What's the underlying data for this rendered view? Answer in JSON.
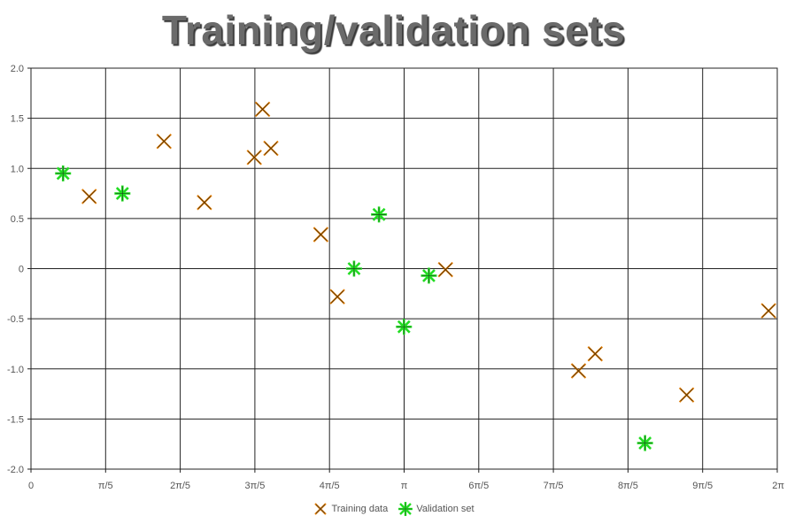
{
  "chart_data": {
    "type": "scatter",
    "title": "Training/validation sets",
    "xlabel": "",
    "ylabel": "",
    "xlim": [
      0,
      6.2832
    ],
    "ylim": [
      -2.0,
      2.0
    ],
    "grid": true,
    "legend_position": "bottom",
    "x_ticks": [
      {
        "value": 0,
        "label": "0"
      },
      {
        "value": 0.6283,
        "label": "π/5"
      },
      {
        "value": 1.2566,
        "label": "2π/5"
      },
      {
        "value": 1.885,
        "label": "3π/5"
      },
      {
        "value": 2.5133,
        "label": "4π/5"
      },
      {
        "value": 3.1416,
        "label": "π"
      },
      {
        "value": 3.7699,
        "label": "6π/5"
      },
      {
        "value": 4.3982,
        "label": "7π/5"
      },
      {
        "value": 5.0265,
        "label": "8π/5"
      },
      {
        "value": 5.6549,
        "label": "9π/5"
      },
      {
        "value": 6.2832,
        "label": "2π"
      }
    ],
    "y_ticks": [
      {
        "value": 2.0,
        "label": "2.0"
      },
      {
        "value": 1.5,
        "label": "1.5"
      },
      {
        "value": 1.0,
        "label": "1.0"
      },
      {
        "value": 0.5,
        "label": "0.5"
      },
      {
        "value": 0,
        "label": "0"
      },
      {
        "value": -0.5,
        "label": "-0.5"
      },
      {
        "value": -1.0,
        "label": "-1.0"
      },
      {
        "value": -1.5,
        "label": "-1.5"
      },
      {
        "value": -2.0,
        "label": "-2.0"
      }
    ],
    "series": [
      {
        "name": "Training data",
        "marker": "x",
        "color": "#e07b00",
        "points": [
          {
            "x": 0.49,
            "y": 0.72
          },
          {
            "x": 1.12,
            "y": 1.27
          },
          {
            "x": 1.46,
            "y": 0.66
          },
          {
            "x": 1.88,
            "y": 1.11
          },
          {
            "x": 1.95,
            "y": 1.59
          },
          {
            "x": 2.02,
            "y": 1.2
          },
          {
            "x": 2.44,
            "y": 0.34
          },
          {
            "x": 2.58,
            "y": -0.28
          },
          {
            "x": 3.49,
            "y": -0.01
          },
          {
            "x": 4.61,
            "y": -1.02
          },
          {
            "x": 4.75,
            "y": -0.85
          },
          {
            "x": 5.52,
            "y": -1.26
          },
          {
            "x": 6.21,
            "y": -0.42
          }
        ]
      },
      {
        "name": "Validation set",
        "marker": "asterisk",
        "color": "#22dd22",
        "points": [
          {
            "x": 0.27,
            "y": 0.95
          },
          {
            "x": 0.77,
            "y": 0.75
          },
          {
            "x": 2.72,
            "y": 0.0
          },
          {
            "x": 2.93,
            "y": 0.54
          },
          {
            "x": 3.14,
            "y": -0.58
          },
          {
            "x": 3.35,
            "y": -0.07
          },
          {
            "x": 5.17,
            "y": -1.74
          }
        ]
      }
    ]
  }
}
